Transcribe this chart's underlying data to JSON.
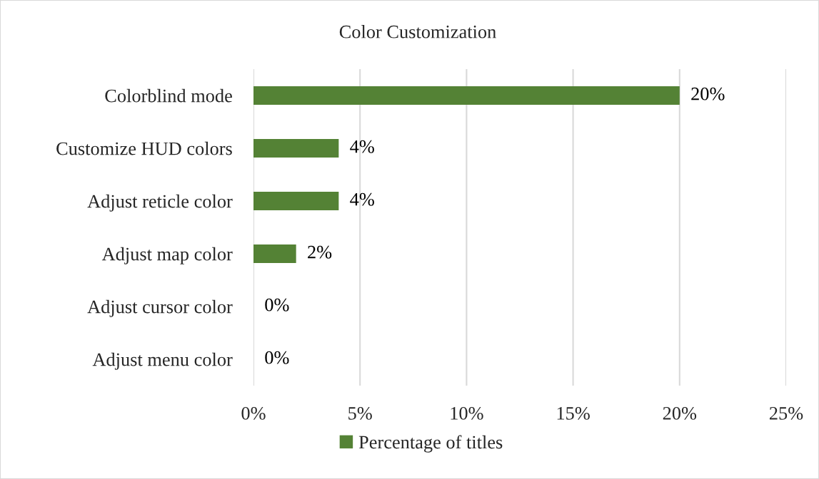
{
  "chart_data": {
    "type": "bar",
    "orientation": "horizontal",
    "title": "Color Customization",
    "categories": [
      "Colorblind mode",
      "Customize HUD colors",
      "Adjust reticle color",
      "Adjust map color",
      "Adjust cursor color",
      "Adjust menu color"
    ],
    "series": [
      {
        "name": "Percentage of titles",
        "color": "#548235",
        "values": [
          20,
          4,
          4,
          2,
          0,
          0
        ],
        "value_labels": [
          "20%",
          "4%",
          "4%",
          "2%",
          "0%",
          "0%"
        ]
      }
    ],
    "xlim": [
      0,
      25
    ],
    "xticks": [
      {
        "value": 0,
        "label": "0%"
      },
      {
        "value": 5,
        "label": "5%"
      },
      {
        "value": 10,
        "label": "10%"
      },
      {
        "value": 15,
        "label": "15%"
      },
      {
        "value": 20,
        "label": "20%"
      },
      {
        "value": 25,
        "label": "25%"
      }
    ],
    "grid": "x",
    "legend": "bottom"
  }
}
